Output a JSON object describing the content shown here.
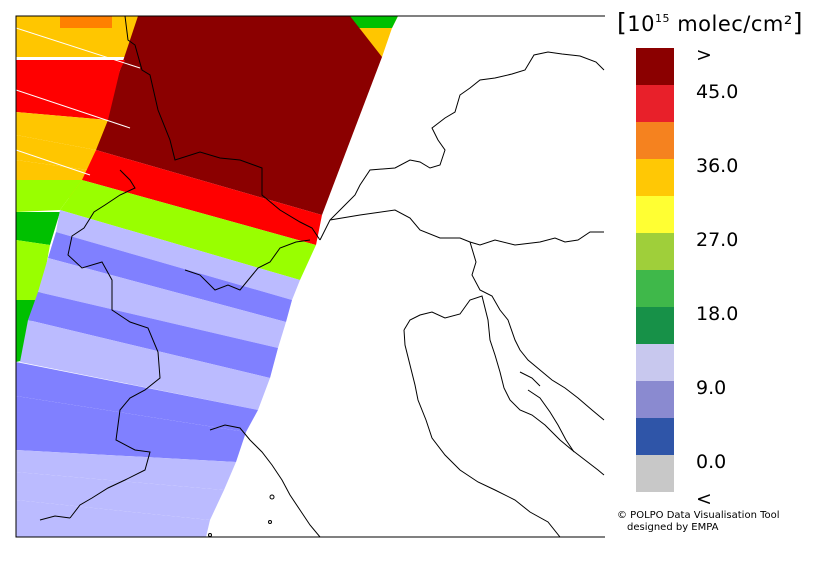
{
  "legend": {
    "unit_prefix": "10",
    "unit_exp": "15",
    "unit_suffix": "molec/cm²",
    "bins": [
      {
        "color": "#8b0000",
        "label": ">"
      },
      {
        "color": "#e8202a",
        "label": "45.0"
      },
      {
        "color": "#f5821f",
        "label": ""
      },
      {
        "color": "#ffc805",
        "label": "36.0"
      },
      {
        "color": "#ffff33",
        "label": ""
      },
      {
        "color": "#9fcf3a",
        "label": "27.0"
      },
      {
        "color": "#3fb84a",
        "label": ""
      },
      {
        "color": "#179148",
        "label": "18.0"
      },
      {
        "color": "#c8c8ee",
        "label": ""
      },
      {
        "color": "#8a8ad0",
        "label": "9.0"
      },
      {
        "color": "#2f55a8",
        "label": ""
      },
      {
        "color": "#c8c8c8",
        "label": "0.0"
      },
      {
        "color": "",
        "label": "<"
      }
    ]
  },
  "credit": {
    "line1": "© POLPO Data Visualisation Tool",
    "line2": "designed by EMPA"
  },
  "map": {
    "strip_colors": {
      "dark_red": "#8b0000",
      "red": "#ff0000",
      "orange": "#ffc600",
      "light_green": "#99ff00",
      "green": "#00c000",
      "light_blue": "#bbbbff",
      "mid_blue": "#8080ff",
      "dark_orange": "#ff8000"
    }
  }
}
